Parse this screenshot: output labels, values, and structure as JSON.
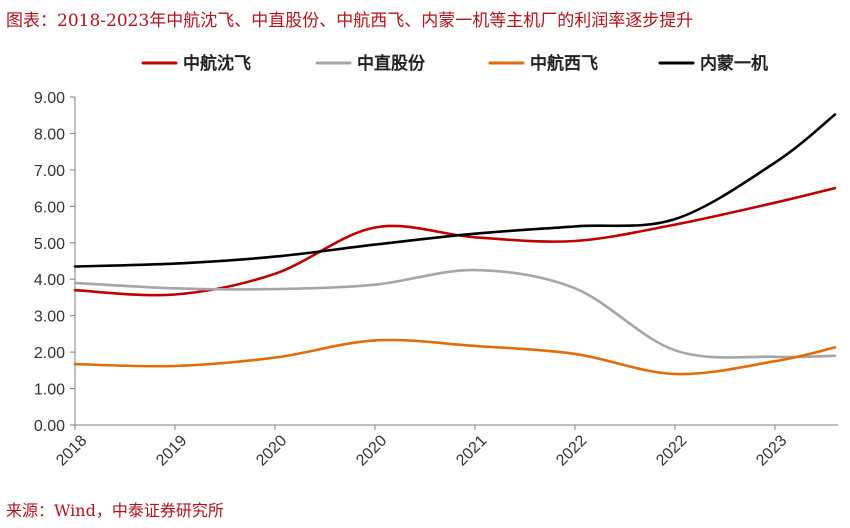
{
  "header": {
    "title": "图表：2018-2023年中航沈飞、中直股份、中航西飞、内蒙一机等主机厂的利润率逐步提升"
  },
  "footer": {
    "source": "来源：Wind，中泰证券研究所"
  },
  "chart_data": {
    "type": "line",
    "title": "",
    "xlabel": "",
    "ylabel": "",
    "ylim": [
      0,
      9
    ],
    "yticks": [
      "0.00",
      "1.00",
      "2.00",
      "3.00",
      "4.00",
      "5.00",
      "6.00",
      "7.00",
      "8.00",
      "9.00"
    ],
    "x_tick_labels": [
      "2018",
      "2019",
      "2020",
      "2020",
      "2021",
      "2022",
      "2022",
      "2023"
    ],
    "x": [
      0,
      1,
      2,
      3,
      4,
      5,
      6,
      7,
      7.6
    ],
    "legend_position": "top",
    "grid": false,
    "series": [
      {
        "name": "中航沈飞",
        "color": "#c00000",
        "values": [
          3.7,
          3.58,
          4.15,
          5.42,
          5.15,
          5.05,
          5.5,
          6.1,
          6.5
        ]
      },
      {
        "name": "中直股份",
        "color": "#a6a6a6",
        "values": [
          3.9,
          3.75,
          3.73,
          3.85,
          4.25,
          3.75,
          2.05,
          1.87,
          1.9
        ]
      },
      {
        "name": "中航西飞",
        "color": "#e36c0a",
        "values": [
          1.67,
          1.62,
          1.85,
          2.32,
          2.17,
          1.95,
          1.4,
          1.75,
          2.13
        ]
      },
      {
        "name": "内蒙一机",
        "color": "#000000",
        "values": [
          4.35,
          4.43,
          4.62,
          4.95,
          5.25,
          5.45,
          5.65,
          7.2,
          8.52
        ]
      }
    ]
  }
}
